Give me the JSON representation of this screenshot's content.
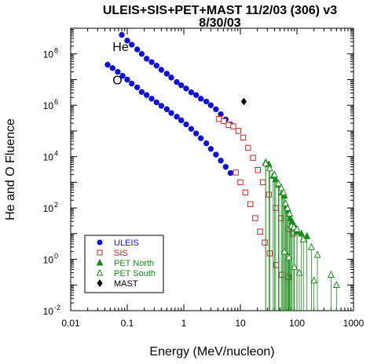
{
  "chart_data": {
    "type": "scatter",
    "title_line1": "ULEIS+SIS+PET+MAST 11/2/03 (306) v3",
    "title_line2": "8/30/03",
    "xlabel": "Energy (MeV/nucleon)",
    "ylabel": "He and O Fluence",
    "x_scale": "log",
    "y_scale": "log",
    "xlim": [
      0.01,
      1000
    ],
    "ylim": [
      0.01,
      1000000000
    ],
    "grid": false,
    "legend_placement": "bottom-left",
    "x_ticks": [
      {
        "value": 0.01,
        "label": "0.01"
      },
      {
        "value": 0.1,
        "label": "0.1"
      },
      {
        "value": 1,
        "label": "1"
      },
      {
        "value": 10,
        "label": "10"
      },
      {
        "value": 100,
        "label": "100"
      },
      {
        "value": 1000,
        "label": "1000"
      }
    ],
    "y_ticks": [
      {
        "value": 0.01,
        "base": "10",
        "exp": "-2"
      },
      {
        "value": 1,
        "base": "10",
        "exp": "0"
      },
      {
        "value": 100,
        "base": "10",
        "exp": "2"
      },
      {
        "value": 10000,
        "base": "10",
        "exp": "4"
      },
      {
        "value": 1000000,
        "base": "10",
        "exp": "6"
      },
      {
        "value": 100000000,
        "base": "10",
        "exp": "8"
      }
    ],
    "annotations": [
      {
        "text": "He",
        "x": 0.055,
        "y": 200000000
      },
      {
        "text": "O",
        "x": 0.055,
        "y": 10000000
      }
    ],
    "series": [
      {
        "name": "ULEIS",
        "marker": "circle",
        "filled": true,
        "color": "#1010d0",
        "points": [
          [
            0.08,
            550000000
          ],
          [
            0.1,
            330000000
          ],
          [
            0.12,
            230000000
          ],
          [
            0.15,
            150000000
          ],
          [
            0.18,
            100000000
          ],
          [
            0.22,
            65000000
          ],
          [
            0.27,
            48000000
          ],
          [
            0.33,
            35000000
          ],
          [
            0.4,
            24000000
          ],
          [
            0.5,
            17000000
          ],
          [
            0.6,
            12000000
          ],
          [
            0.75,
            8000000
          ],
          [
            0.9,
            6000000
          ],
          [
            1.1,
            4500000
          ],
          [
            1.35,
            3200000
          ],
          [
            1.65,
            2500000
          ],
          [
            2.0,
            1800000
          ],
          [
            2.5,
            1400000
          ],
          [
            3.0,
            1000000
          ],
          [
            3.7,
            700000
          ],
          [
            4.5,
            450000
          ],
          [
            5.5,
            280000
          ],
          [
            6.7,
            180000
          ],
          [
            0.045,
            38000000
          ],
          [
            0.055,
            28000000
          ],
          [
            0.068,
            20000000
          ],
          [
            0.083,
            14000000
          ],
          [
            0.1,
            10000000
          ],
          [
            0.12,
            7000000
          ],
          [
            0.15,
            5000000
          ],
          [
            0.18,
            3300000
          ],
          [
            0.22,
            2500000
          ],
          [
            0.27,
            1800000
          ],
          [
            0.33,
            1300000
          ],
          [
            0.4,
            950000
          ],
          [
            0.5,
            700000
          ],
          [
            0.6,
            500000
          ],
          [
            0.75,
            360000
          ],
          [
            0.9,
            260000
          ],
          [
            1.1,
            180000
          ],
          [
            1.35,
            120000
          ],
          [
            1.65,
            80000
          ],
          [
            2.0,
            52000
          ],
          [
            2.5,
            33000
          ],
          [
            3.0,
            20000
          ],
          [
            3.7,
            12000
          ],
          [
            4.5,
            7000
          ],
          [
            5.5,
            4000
          ],
          [
            6.7,
            2300
          ]
        ]
      },
      {
        "name": "SIS",
        "marker": "square",
        "filled": false,
        "color": "#cc2222",
        "points": [
          [
            4.2,
            290000
          ],
          [
            5.1,
            240000
          ],
          [
            6.2,
            170000
          ],
          [
            7.5,
            150000
          ],
          [
            9.2,
            100000
          ],
          [
            11.2,
            55000
          ],
          [
            13.7,
            22000
          ],
          [
            16.7,
            9000
          ],
          [
            20.4,
            3000
          ],
          [
            25,
            1000
          ],
          [
            32,
            330
          ],
          [
            42,
            100
          ],
          [
            52,
            40
          ],
          [
            70,
            15
          ],
          [
            85,
            10
          ],
          [
            8.3,
            2400
          ],
          [
            10.0,
            1000
          ],
          [
            12.3,
            400
          ],
          [
            15,
            140
          ],
          [
            18.3,
            40
          ],
          [
            22.3,
            12
          ],
          [
            27,
            4.5
          ],
          [
            33,
            1.7
          ],
          [
            43,
            0.6
          ],
          [
            54,
            0.25
          ],
          [
            70,
            0.2
          ]
        ]
      },
      {
        "name": "PET North",
        "marker": "triangle",
        "filled": true,
        "color": "#1a8a1a",
        "points": [
          [
            28,
            6000
          ],
          [
            32,
            5000
          ],
          [
            38,
            1800
          ],
          [
            42,
            1300
          ],
          [
            48,
            800
          ],
          [
            55,
            400
          ],
          [
            60,
            300
          ],
          [
            65,
            120
          ],
          [
            70,
            80
          ],
          [
            76,
            40
          ],
          [
            82,
            30
          ],
          [
            90,
            20
          ],
          [
            100,
            12
          ],
          [
            120,
            10
          ],
          [
            150,
            8
          ]
        ]
      },
      {
        "name": "PET South",
        "marker": "triangle",
        "filled": false,
        "color": "#1a8a1a",
        "points": [
          [
            28,
            5500
          ],
          [
            33,
            3500
          ],
          [
            40,
            2000
          ],
          [
            47,
            900
          ],
          [
            53,
            600
          ],
          [
            58,
            400
          ],
          [
            63,
            150
          ],
          [
            68,
            100
          ],
          [
            74,
            60
          ],
          [
            80,
            20
          ],
          [
            88,
            18
          ],
          [
            100,
            15
          ],
          [
            130,
            6
          ],
          [
            180,
            3
          ],
          [
            230,
            1.5
          ],
          [
            60,
            2
          ],
          [
            72,
            1.2
          ],
          [
            90,
            0.5
          ],
          [
            110,
            0.3
          ],
          [
            200,
            0.15
          ],
          [
            400,
            0.25
          ],
          [
            500,
            0.1
          ]
        ]
      },
      {
        "name": "MAST",
        "marker": "diamond",
        "filled": true,
        "color": "#000000",
        "points": [
          [
            11.5,
            1400000
          ]
        ]
      }
    ]
  }
}
